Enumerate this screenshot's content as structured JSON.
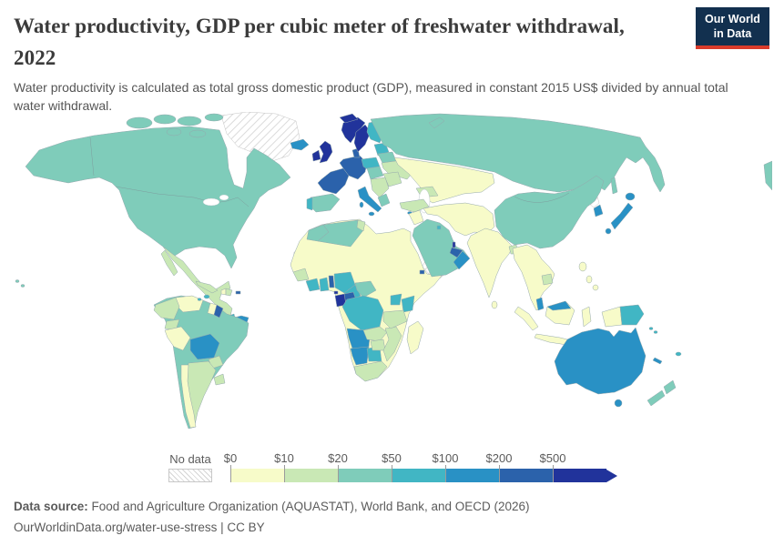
{
  "header": {
    "title_line1": "Water productivity, GDP per cubic meter of freshwater withdrawal,",
    "title_line2": "2022",
    "subtitle": "Water productivity is calculated as total gross domestic product (GDP), measured in constant 2015 US$ divided by annual total water withdrawal."
  },
  "logo": {
    "line1": "Our World",
    "line2": "in Data",
    "bg_color": "#12304f",
    "stripe_color": "#d93b2b"
  },
  "legend": {
    "no_data_label": "No data",
    "bins": [
      {
        "label": "$0",
        "color": "#f7fbc9"
      },
      {
        "label": "$10",
        "color": "#c9e8b5"
      },
      {
        "label": "$20",
        "color": "#7fccba"
      },
      {
        "label": "$50",
        "color": "#41b6c4"
      },
      {
        "label": "$100",
        "color": "#2991c5"
      },
      {
        "label": "$200",
        "color": "#2b62ab"
      },
      {
        "label": "$500",
        "color": "#21339b"
      }
    ]
  },
  "footer": {
    "source_label": "Data source:",
    "source_text": "Food and Agriculture Organization (AQUASTAT), World Bank, and OECD (2026)",
    "url_text": "OurWorldinData.org/water-use-stress",
    "separator": "|",
    "license": "CC BY"
  },
  "chart_data": {
    "type": "heatmap",
    "subtype": "choropleth-world-map",
    "title": "Water productivity, GDP per cubic meter of freshwater withdrawal, 2022",
    "unit": "constant 2015 US$ of GDP per cubic meter of freshwater withdrawn",
    "legend_position": "bottom",
    "bin_edges_usd": [
      0,
      10,
      20,
      50,
      100,
      200,
      500
    ],
    "bin_colors": [
      "#f7fbc9",
      "#c9e8b5",
      "#7fccba",
      "#41b6c4",
      "#2991c5",
      "#2b62ab",
      "#21339b"
    ],
    "no_data_style": "gray-diagonal-hatch",
    "countries_by_bin": {
      "$0-10": [
        "Peru",
        "Chile",
        "Venezuela",
        "Haiti",
        "Egypt",
        "Libya",
        "Sudan",
        "Mali",
        "Niger",
        "Chad",
        "Senegal",
        "Ethiopia",
        "Somalia",
        "Madagascar",
        "Iraq",
        "Iran",
        "Afghanistan",
        "Pakistan",
        "India",
        "Sri Lanka",
        "Kazakhstan",
        "Uzbekistan",
        "Turkmenistan",
        "Myanmar",
        "Thailand",
        "Vietnam",
        "Laos",
        "Indonesia",
        "Philippines"
      ],
      "$10-20": [
        "Mexico",
        "Guatemala",
        "Honduras",
        "Nicaragua",
        "Cuba",
        "Dominican Republic",
        "Colombia",
        "Ecuador",
        "Argentina",
        "Paraguay",
        "Uruguay",
        "Ukraine",
        "Romania",
        "Turkey",
        "Guinea",
        "Tanzania",
        "Zambia",
        "Zimbabwe",
        "Mozambique",
        "South Africa",
        "Cambodia",
        "Bangladesh"
      ],
      "$20-50": [
        "United States",
        "Canada",
        "Brazil",
        "Russia",
        "China",
        "Mongolia",
        "Saudi Arabia",
        "Algeria",
        "Morocco",
        "Spain",
        "Greece",
        "Belarus",
        "Central African Republic",
        "New Zealand"
      ],
      "$50-100": [
        "Cote d'Ivoire",
        "Ghana",
        "Nigeria",
        "Cameroon",
        "Kenya",
        "Uganda",
        "Botswana",
        "Democratic Republic of Congo",
        "Poland",
        "Finland",
        "Portugal",
        "Baltic states",
        "Kuwait",
        "Papua New Guinea",
        "Fiji",
        "Costa Rica",
        "Jamaica"
      ],
      "$100-200": [
        "Australia",
        "Japan",
        "South Korea",
        "Malaysia",
        "Italy",
        "Iceland",
        "Oman",
        "Bolivia",
        "Angola",
        "Namibia",
        "Panama",
        "Cyprus"
      ],
      "$200-500": [
        "France",
        "Germany",
        "Netherlands",
        "Belgium",
        "Switzerland",
        "Austria",
        "Denmark",
        "United Arab Emirates",
        "Republic of Congo",
        "Benin",
        "Djibouti",
        "French Guiana",
        "Puerto Rico"
      ],
      "$500+": [
        "United Kingdom",
        "Ireland",
        "Norway",
        "Sweden",
        "Gabon",
        "Equatorial Guinea",
        "Qatar"
      ],
      "no_data": [
        "Greenland",
        "Western Sahara",
        "Mauritania",
        "South Sudan",
        "Eritrea",
        "Yemen",
        "North Korea",
        "Guyana"
      ]
    }
  }
}
